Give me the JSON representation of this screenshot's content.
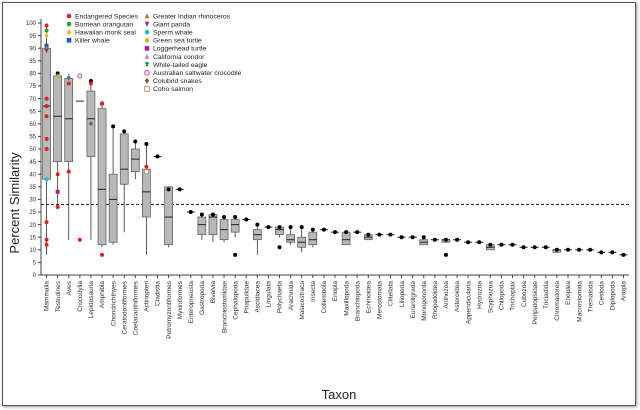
{
  "chart_data": {
    "type": "box",
    "xlabel": "Taxon",
    "ylabel": "Percent Similarity",
    "ylim": [
      0,
      100
    ],
    "yticks": [
      0,
      5,
      10,
      15,
      20,
      25,
      30,
      35,
      40,
      45,
      50,
      55,
      60,
      65,
      70,
      75,
      80,
      85,
      90,
      95,
      100
    ],
    "reference_line": 28,
    "categories": [
      "Mammalia",
      "Testudines",
      "Aves",
      "Crocodylia",
      "Lepidosauria",
      "Amphibia",
      "Chondrichthyes",
      "Ceratodontiformes",
      "Coelacanthiformes",
      "Actinopteri",
      "Cladistia",
      "Petromyzontiformes",
      "Myxiniformes",
      "Enteropneusta",
      "Gastropoda",
      "Bivalvia",
      "Branchiostomidae",
      "Cephalopoda",
      "Priapulidae",
      "Ascidiacea",
      "Lingulata",
      "Polychaeta",
      "Arachnida",
      "Malacostraca",
      "Insecta",
      "Collembola",
      "Enopla",
      "Maxillopoda",
      "Branchiopoda",
      "Echinoidea",
      "Merostomata",
      "Clitellata",
      "Liliopeda",
      "Eurardigrada",
      "Monogononta",
      "Rhopalioidea",
      "Anthozoa",
      "Asteroidea",
      "Appendicularia",
      "Hydrozoa",
      "Scyphozoa",
      "Chilopoda",
      "Trichoplax",
      "Cubozoa",
      "Peripatopsidae",
      "Tricladida",
      "Chromadorea",
      "Enoplea",
      "Macrostomida",
      "Trematoda",
      "Cestoda",
      "Diplopoda",
      "Anopla"
    ],
    "boxes": [
      {
        "min": 8,
        "q1": 38,
        "median": 67,
        "q3": 90,
        "max": 99,
        "outliers": []
      },
      {
        "min": 28,
        "q1": 45,
        "median": 63,
        "q3": 79,
        "max": 80,
        "outliers": [
          80
        ]
      },
      {
        "min": 14,
        "q1": 45,
        "median": 62,
        "q3": 78,
        "max": 80,
        "outliers": []
      },
      {
        "min": 69,
        "q1": 69,
        "median": 69,
        "q3": 69,
        "max": 69,
        "outliers": [
          79
        ]
      },
      {
        "min": 14,
        "q1": 47,
        "median": 62,
        "q3": 73,
        "max": 78,
        "outliers": [
          77
        ]
      },
      {
        "min": 11,
        "q1": 12,
        "median": 34,
        "q3": 66,
        "max": 69,
        "outliers": [
          68
        ]
      },
      {
        "min": 12,
        "q1": 13,
        "median": 30,
        "q3": 40,
        "max": 59,
        "outliers": [
          59
        ]
      },
      {
        "min": 17,
        "q1": 36,
        "median": 42,
        "q3": 56,
        "max": 57,
        "outliers": [
          57
        ]
      },
      {
        "min": 38,
        "q1": 41,
        "median": 46,
        "q3": 50,
        "max": 53,
        "outliers": [
          53
        ]
      },
      {
        "min": 8,
        "q1": 23,
        "median": 33,
        "q3": 42,
        "max": 52,
        "outliers": [
          52
        ]
      },
      {
        "min": 47,
        "q1": 47,
        "median": 47,
        "q3": 47,
        "max": 47,
        "outliers": [
          47
        ]
      },
      {
        "min": 11,
        "q1": 12,
        "median": 23,
        "q3": 35,
        "max": 35,
        "outliers": [
          34
        ]
      },
      {
        "min": 34,
        "q1": 34,
        "median": 34,
        "q3": 34,
        "max": 34,
        "outliers": [
          34
        ]
      },
      {
        "min": 25,
        "q1": 25,
        "median": 25,
        "q3": 25,
        "max": 25,
        "outliers": [
          25
        ]
      },
      {
        "min": 14,
        "q1": 16,
        "median": 20,
        "q3": 23,
        "max": 24,
        "outliers": [
          24
        ]
      },
      {
        "min": 13,
        "q1": 16,
        "median": 23,
        "q3": 24,
        "max": 24,
        "outliers": [
          24
        ]
      },
      {
        "min": 13,
        "q1": 14,
        "median": 18,
        "q3": 22,
        "max": 23,
        "outliers": [
          23
        ]
      },
      {
        "min": 15,
        "q1": 17,
        "median": 20,
        "q3": 22,
        "max": 23,
        "outliers": [
          23,
          8
        ]
      },
      {
        "min": 22,
        "q1": 22,
        "median": 22,
        "q3": 22,
        "max": 22,
        "outliers": [
          22
        ]
      },
      {
        "min": 8,
        "q1": 14,
        "median": 16,
        "q3": 18,
        "max": 20,
        "outliers": [
          20
        ]
      },
      {
        "min": 19,
        "q1": 19,
        "median": 19,
        "q3": 19,
        "max": 19,
        "outliers": [
          19
        ]
      },
      {
        "min": 15,
        "q1": 16,
        "median": 18,
        "q3": 19,
        "max": 19,
        "outliers": [
          19,
          11
        ]
      },
      {
        "min": 12,
        "q1": 13,
        "median": 14,
        "q3": 16,
        "max": 19,
        "outliers": [
          19
        ]
      },
      {
        "min": 9,
        "q1": 11,
        "median": 13,
        "q3": 15,
        "max": 19,
        "outliers": [
          19
        ]
      },
      {
        "min": 11,
        "q1": 12,
        "median": 14,
        "q3": 17,
        "max": 18,
        "outliers": [
          18
        ]
      },
      {
        "min": 18,
        "q1": 18,
        "median": 18,
        "q3": 18,
        "max": 18,
        "outliers": [
          18
        ]
      },
      {
        "min": 17,
        "q1": 17,
        "median": 17,
        "q3": 17,
        "max": 17,
        "outliers": [
          17
        ]
      },
      {
        "min": 12,
        "q1": 12,
        "median": 14,
        "q3": 17,
        "max": 17,
        "outliers": [
          17
        ]
      },
      {
        "min": 17,
        "q1": 17,
        "median": 17,
        "q3": 17,
        "max": 17,
        "outliers": [
          17
        ]
      },
      {
        "min": 14,
        "q1": 14,
        "median": 15,
        "q3": 16,
        "max": 16,
        "outliers": [
          16
        ]
      },
      {
        "min": 16,
        "q1": 16,
        "median": 16,
        "q3": 16,
        "max": 16,
        "outliers": [
          16
        ]
      },
      {
        "min": 16,
        "q1": 16,
        "median": 16,
        "q3": 16,
        "max": 16,
        "outliers": [
          16
        ]
      },
      {
        "min": 15,
        "q1": 15,
        "median": 15,
        "q3": 15,
        "max": 15,
        "outliers": [
          15
        ]
      },
      {
        "min": 15,
        "q1": 15,
        "median": 15,
        "q3": 15,
        "max": 15,
        "outliers": [
          15
        ]
      },
      {
        "min": 12,
        "q1": 12,
        "median": 13,
        "q3": 14,
        "max": 15,
        "outliers": [
          15
        ]
      },
      {
        "min": 14,
        "q1": 14,
        "median": 14,
        "q3": 14,
        "max": 14,
        "outliers": [
          14
        ]
      },
      {
        "min": 13,
        "q1": 13,
        "median": 14,
        "q3": 14,
        "max": 14,
        "outliers": [
          14,
          8
        ]
      },
      {
        "min": 14,
        "q1": 14,
        "median": 14,
        "q3": 14,
        "max": 14,
        "outliers": [
          14
        ]
      },
      {
        "min": 13,
        "q1": 13,
        "median": 13,
        "q3": 13,
        "max": 13,
        "outliers": [
          13
        ]
      },
      {
        "min": 13,
        "q1": 13,
        "median": 13,
        "q3": 13,
        "max": 13,
        "outliers": [
          13
        ]
      },
      {
        "min": 10,
        "q1": 10,
        "median": 11,
        "q3": 12,
        "max": 12,
        "outliers": [
          12
        ]
      },
      {
        "min": 12,
        "q1": 12,
        "median": 12,
        "q3": 12,
        "max": 12,
        "outliers": [
          12
        ]
      },
      {
        "min": 12,
        "q1": 12,
        "median": 12,
        "q3": 12,
        "max": 12,
        "outliers": [
          12
        ]
      },
      {
        "min": 11,
        "q1": 11,
        "median": 11,
        "q3": 11,
        "max": 11,
        "outliers": [
          11
        ]
      },
      {
        "min": 11,
        "q1": 11,
        "median": 11,
        "q3": 11,
        "max": 11,
        "outliers": [
          11
        ]
      },
      {
        "min": 11,
        "q1": 11,
        "median": 11,
        "q3": 11,
        "max": 11,
        "outliers": [
          11
        ]
      },
      {
        "min": 9,
        "q1": 9,
        "median": 10,
        "q3": 10,
        "max": 10,
        "outliers": [
          10
        ]
      },
      {
        "min": 10,
        "q1": 10,
        "median": 10,
        "q3": 10,
        "max": 10,
        "outliers": [
          10
        ]
      },
      {
        "min": 10,
        "q1": 10,
        "median": 10,
        "q3": 10,
        "max": 10,
        "outliers": [
          10
        ]
      },
      {
        "min": 10,
        "q1": 10,
        "median": 10,
        "q3": 10,
        "max": 10,
        "outliers": [
          10
        ]
      },
      {
        "min": 9,
        "q1": 9,
        "median": 9,
        "q3": 9,
        "max": 9,
        "outliers": [
          9
        ]
      },
      {
        "min": 9,
        "q1": 9,
        "median": 9,
        "q3": 9,
        "max": 9,
        "outliers": [
          9
        ]
      },
      {
        "min": 8,
        "q1": 8,
        "median": 8,
        "q3": 8,
        "max": 8,
        "outliers": [
          8
        ]
      }
    ],
    "legend_position": "top-left",
    "species": [
      {
        "name": "Endangered Species",
        "marker": "circle",
        "color": "#e02020"
      },
      {
        "name": "Bornean orangutan",
        "marker": "circle",
        "color": "#2e9a3a"
      },
      {
        "name": "Hawaiian monk seal",
        "marker": "diamond",
        "color": "#f0b400"
      },
      {
        "name": "Killer whale",
        "marker": "square",
        "color": "#1c5fb0"
      },
      {
        "name": "Greater Indian rhinoceros",
        "marker": "triangle-up",
        "color": "#d2691e"
      },
      {
        "name": "Giant panda",
        "marker": "triangle-down",
        "color": "#7a2e9a"
      },
      {
        "name": "Sperm whale",
        "marker": "circle",
        "color": "#20b8d8"
      },
      {
        "name": "Green sea turtle",
        "marker": "diamond",
        "color": "#b8b800"
      },
      {
        "name": "Loggerhead turtle",
        "marker": "square",
        "color": "#a020a0"
      },
      {
        "name": "California condor",
        "marker": "triangle-up",
        "color": "#e070c0"
      },
      {
        "name": "White-tailed eagle",
        "marker": "triangle-down",
        "color": "#1a8a6a"
      },
      {
        "name": "Australian saltwater crocodile",
        "marker": "circle-open",
        "color": "#c040c0"
      },
      {
        "name": "Colubrid snakes",
        "marker": "diamond",
        "color": "#8b5a2b"
      },
      {
        "name": "Coho salmon",
        "marker": "square-open",
        "color": "#a0a060"
      }
    ],
    "species_points": [
      {
        "category": "Mammalia",
        "values": [
          [
            0,
            99
          ],
          [
            1,
            97
          ],
          [
            2,
            95
          ],
          [
            3,
            91
          ],
          [
            4,
            90
          ],
          [
            5,
            89
          ],
          [
            6,
            38
          ],
          [
            0,
            70
          ],
          [
            0,
            67
          ],
          [
            0,
            63
          ],
          [
            0,
            54
          ],
          [
            0,
            50
          ],
          [
            0,
            21
          ],
          [
            0,
            14
          ],
          [
            0,
            12
          ]
        ]
      },
      {
        "category": "Testudines",
        "values": [
          [
            7,
            79
          ],
          [
            8,
            33
          ],
          [
            0,
            40
          ],
          [
            0,
            27
          ]
        ]
      },
      {
        "category": "Aves",
        "values": [
          [
            9,
            79
          ],
          [
            10,
            78
          ],
          [
            0,
            76
          ],
          [
            0,
            41
          ]
        ]
      },
      {
        "category": "Crocodylia",
        "values": [
          [
            11,
            79
          ],
          [
            0,
            14
          ]
        ]
      },
      {
        "category": "Lepidosauria",
        "values": [
          [
            12,
            60
          ],
          [
            0,
            76
          ]
        ]
      },
      {
        "category": "Amphibia",
        "values": [
          [
            0,
            68
          ],
          [
            0,
            8
          ]
        ]
      },
      {
        "category": "Actinopteri",
        "values": [
          [
            13,
            41
          ],
          [
            0,
            43
          ]
        ]
      }
    ]
  }
}
